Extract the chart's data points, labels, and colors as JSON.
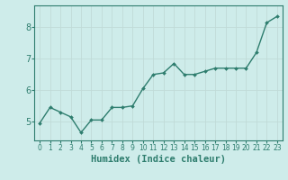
{
  "x": [
    0,
    1,
    2,
    3,
    4,
    5,
    6,
    7,
    8,
    9,
    10,
    11,
    12,
    13,
    14,
    15,
    16,
    17,
    18,
    19,
    20,
    21,
    22,
    23
  ],
  "y": [
    4.95,
    5.45,
    5.3,
    5.15,
    4.65,
    5.05,
    5.05,
    5.45,
    5.45,
    5.5,
    6.05,
    6.5,
    6.55,
    6.85,
    6.5,
    6.5,
    6.6,
    6.7,
    6.7,
    6.7,
    6.7,
    7.2,
    8.15,
    8.35
  ],
  "line_color": "#2e7d6e",
  "marker": "D",
  "marker_size": 2.0,
  "linewidth": 1.0,
  "bg_color": "#ceecea",
  "grid_color": "#c0dbd8",
  "xlabel": "Humidex (Indice chaleur)",
  "ylim": [
    4.4,
    8.7
  ],
  "xlim": [
    -0.5,
    23.5
  ],
  "yticks": [
    5,
    6,
    7,
    8
  ],
  "xtick_labels": [
    "0",
    "1",
    "2",
    "3",
    "4",
    "5",
    "6",
    "7",
    "8",
    "9",
    "10",
    "11",
    "12",
    "13",
    "14",
    "15",
    "16",
    "17",
    "18",
    "19",
    "20",
    "21",
    "22",
    "23"
  ],
  "tick_color": "#2e7d6e",
  "xlabel_fontsize": 7.5,
  "ytick_fontsize": 7,
  "xtick_fontsize": 5.5
}
